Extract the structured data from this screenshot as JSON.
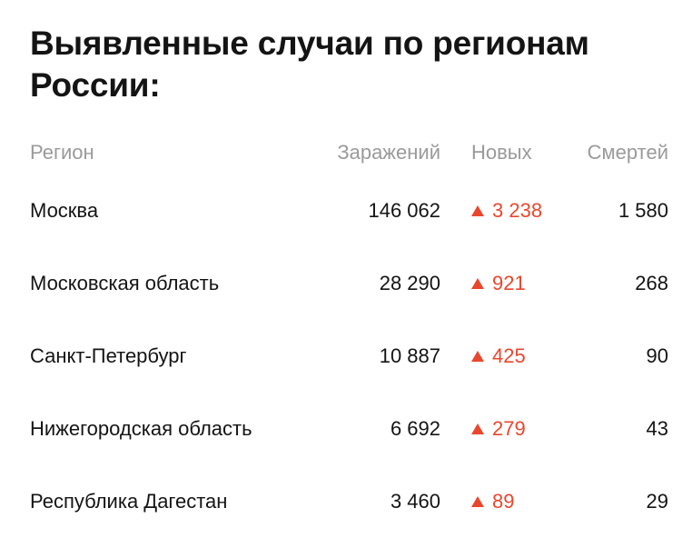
{
  "title": "Выявленные случаи по регионам России:",
  "columns": {
    "region": "Регион",
    "infected": "Заражений",
    "new": "Новых",
    "deaths": "Смертей"
  },
  "colors": {
    "new_cases": "#e8472e",
    "header_text": "#9a9a9a",
    "body_text": "#141414"
  },
  "rows": [
    {
      "region": "Москва",
      "infected": "146 062",
      "new": "3 238",
      "deaths": "1 580"
    },
    {
      "region": "Московская область",
      "infected": "28 290",
      "new": "921",
      "deaths": "268"
    },
    {
      "region": "Санкт-Петербург",
      "infected": "10 887",
      "new": "425",
      "deaths": "90"
    },
    {
      "region": "Нижегородская область",
      "infected": "6 692",
      "new": "279",
      "deaths": "43"
    },
    {
      "region": "Республика Дагестан",
      "infected": "3 460",
      "new": "89",
      "deaths": "29"
    }
  ]
}
